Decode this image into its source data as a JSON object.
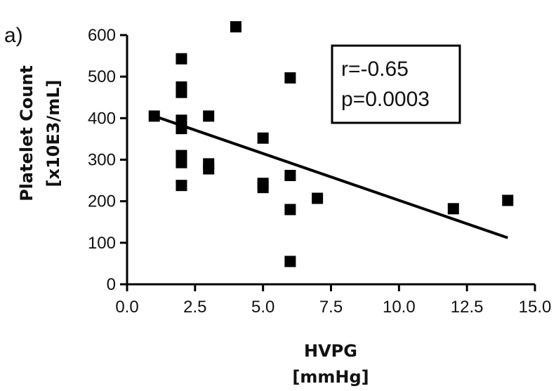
{
  "chart_data": {
    "type": "scatter",
    "panel_label": "a)",
    "xlabel": "HVPG",
    "xunit": "[mmHg]",
    "ylabel": "Platelet Count",
    "yunit": "[x10E3/mL]",
    "xlim": [
      0,
      15
    ],
    "ylim": [
      0,
      600
    ],
    "x_ticks": [
      "0.0",
      "2.5",
      "5.0",
      "7.5",
      "10.0",
      "12.5",
      "15.0"
    ],
    "y_ticks": [
      "0",
      "100",
      "200",
      "300",
      "400",
      "500",
      "600"
    ],
    "points": [
      {
        "x": 1,
        "y": 405
      },
      {
        "x": 2,
        "y": 543
      },
      {
        "x": 2,
        "y": 475
      },
      {
        "x": 2,
        "y": 462
      },
      {
        "x": 2,
        "y": 395
      },
      {
        "x": 2,
        "y": 390
      },
      {
        "x": 2,
        "y": 375
      },
      {
        "x": 2,
        "y": 310
      },
      {
        "x": 2,
        "y": 293
      },
      {
        "x": 2,
        "y": 238
      },
      {
        "x": 3,
        "y": 405
      },
      {
        "x": 3,
        "y": 290
      },
      {
        "x": 3,
        "y": 278
      },
      {
        "x": 4,
        "y": 620
      },
      {
        "x": 5,
        "y": 352
      },
      {
        "x": 5,
        "y": 243
      },
      {
        "x": 5,
        "y": 233
      },
      {
        "x": 6,
        "y": 497
      },
      {
        "x": 6,
        "y": 262
      },
      {
        "x": 6,
        "y": 180
      },
      {
        "x": 6,
        "y": 55
      },
      {
        "x": 7,
        "y": 207
      },
      {
        "x": 12,
        "y": 182
      },
      {
        "x": 14,
        "y": 202
      }
    ],
    "regression_line": {
      "x": [
        1,
        14
      ],
      "y": [
        405,
        112
      ]
    },
    "annotation": {
      "r": "r=-0.65",
      "p": "p=0.0003"
    },
    "grid": false,
    "marker_color": "#000000"
  }
}
